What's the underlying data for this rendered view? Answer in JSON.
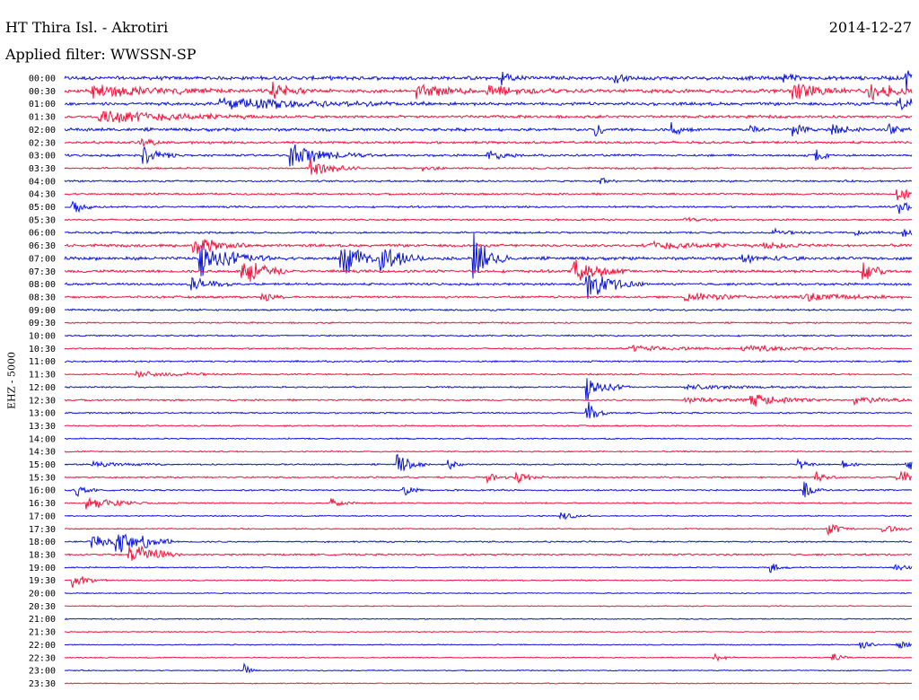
{
  "header": {
    "station": "HT Thira Isl. - Akrotiri",
    "date": "2014-12-27",
    "filter": "Applied filter: WWSSN-SP"
  },
  "channel_label": "EHZ - 5000",
  "colors": {
    "blue": "#0a14dc",
    "red": "#f0143c"
  },
  "chart_data": {
    "type": "line",
    "title": "HT Thira Isl. - Akrotiri",
    "subtitle": "Applied filter: WWSSN-SP",
    "ylabel": "EHZ - 5000",
    "xlabel": "",
    "grid": false,
    "row_labels": [
      "00:00",
      "00:30",
      "01:00",
      "01:30",
      "02:00",
      "02:30",
      "03:00",
      "03:30",
      "04:00",
      "04:30",
      "05:00",
      "05:30",
      "06:00",
      "06:30",
      "07:00",
      "07:30",
      "08:00",
      "08:30",
      "09:00",
      "09:30",
      "10:00",
      "10:30",
      "11:00",
      "11:30",
      "12:00",
      "12:30",
      "13:00",
      "13:30",
      "14:00",
      "14:30",
      "15:00",
      "15:30",
      "16:00",
      "16:30",
      "17:00",
      "17:30",
      "18:00",
      "18:30",
      "19:00",
      "19:30",
      "20:00",
      "20:30",
      "21:00",
      "21:30",
      "22:00",
      "22:30",
      "23:00",
      "23:30"
    ],
    "row_colors": "alternating blue (HH:00) / red (HH:30)",
    "x_unit": "minutes into 30-min row",
    "noise_level": [
      2.4,
      2.4,
      2.0,
      1.8,
      2.0,
      1.6,
      1.4,
      1.2,
      1.2,
      1.2,
      1.2,
      1.1,
      1.3,
      1.8,
      2.0,
      1.8,
      1.5,
      1.4,
      1.2,
      1.0,
      1.0,
      1.0,
      1.1,
      1.0,
      1.0,
      1.1,
      1.0,
      0.9,
      0.9,
      0.9,
      1.0,
      1.1,
      1.0,
      0.9,
      0.8,
      0.8,
      1.0,
      1.2,
      0.8,
      0.8,
      0.7,
      0.7,
      0.7,
      0.7,
      0.7,
      0.7,
      0.7,
      0.7
    ],
    "events": [
      {
        "row": 0,
        "t": 15.5,
        "amp": 9,
        "dur": 0.4
      },
      {
        "row": 0,
        "t": 19.5,
        "amp": 7,
        "dur": 0.3
      },
      {
        "row": 0,
        "t": 25.5,
        "amp": 6,
        "dur": 0.3
      },
      {
        "row": 0,
        "t": 29.8,
        "amp": 12,
        "dur": 0.3
      },
      {
        "row": 1,
        "t": 1.0,
        "amp": 8,
        "dur": 2.0
      },
      {
        "row": 1,
        "t": 7.3,
        "amp": 12,
        "dur": 0.5
      },
      {
        "row": 1,
        "t": 12.5,
        "amp": 9,
        "dur": 1.0
      },
      {
        "row": 1,
        "t": 15.0,
        "amp": 8,
        "dur": 1.0
      },
      {
        "row": 1,
        "t": 25.8,
        "amp": 11,
        "dur": 0.8
      },
      {
        "row": 1,
        "t": 28.5,
        "amp": 10,
        "dur": 1.0
      },
      {
        "row": 2,
        "t": 5.5,
        "amp": 8,
        "dur": 3.0
      },
      {
        "row": 2,
        "t": 29.5,
        "amp": 9,
        "dur": 0.8
      },
      {
        "row": 3,
        "t": 1.2,
        "amp": 9,
        "dur": 2.5
      },
      {
        "row": 4,
        "t": 18.8,
        "amp": 10,
        "dur": 0.2
      },
      {
        "row": 4,
        "t": 21.5,
        "amp": 9,
        "dur": 0.3
      },
      {
        "row": 4,
        "t": 24.3,
        "amp": 7,
        "dur": 0.2
      },
      {
        "row": 4,
        "t": 25.8,
        "amp": 9,
        "dur": 0.3
      },
      {
        "row": 4,
        "t": 27.2,
        "amp": 8,
        "dur": 0.4
      },
      {
        "row": 4,
        "t": 29.2,
        "amp": 7,
        "dur": 0.3
      },
      {
        "row": 5,
        "t": 2.7,
        "amp": 6,
        "dur": 0.4
      },
      {
        "row": 6,
        "t": 2.8,
        "amp": 12,
        "dur": 0.5
      },
      {
        "row": 6,
        "t": 8.0,
        "amp": 14,
        "dur": 1.2
      },
      {
        "row": 6,
        "t": 15.0,
        "amp": 6,
        "dur": 0.5
      },
      {
        "row": 6,
        "t": 26.6,
        "amp": 8,
        "dur": 0.3
      },
      {
        "row": 7,
        "t": 8.7,
        "amp": 12,
        "dur": 0.7
      },
      {
        "row": 7,
        "t": 12.7,
        "amp": 5,
        "dur": 0.3
      },
      {
        "row": 8,
        "t": 19.0,
        "amp": 5,
        "dur": 0.3
      },
      {
        "row": 9,
        "t": 29.5,
        "amp": 16,
        "dur": 0.3
      },
      {
        "row": 10,
        "t": 0.3,
        "amp": 8,
        "dur": 0.4
      },
      {
        "row": 10,
        "t": 29.5,
        "amp": 10,
        "dur": 0.4
      },
      {
        "row": 11,
        "t": 22.0,
        "amp": 3,
        "dur": 0.5
      },
      {
        "row": 12,
        "t": 25.0,
        "amp": 4,
        "dur": 0.6
      },
      {
        "row": 12,
        "t": 28.0,
        "amp": 3,
        "dur": 0.4
      },
      {
        "row": 12,
        "t": 29.7,
        "amp": 5,
        "dur": 0.4
      },
      {
        "row": 13,
        "t": 4.5,
        "amp": 14,
        "dur": 0.8
      },
      {
        "row": 13,
        "t": 20.8,
        "amp": 5,
        "dur": 1.5
      },
      {
        "row": 13,
        "t": 24.8,
        "amp": 5,
        "dur": 0.8
      },
      {
        "row": 14,
        "t": 4.8,
        "amp": 22,
        "dur": 1.0
      },
      {
        "row": 14,
        "t": 9.8,
        "amp": 26,
        "dur": 0.5
      },
      {
        "row": 14,
        "t": 11.2,
        "amp": 22,
        "dur": 0.6
      },
      {
        "row": 14,
        "t": 14.5,
        "amp": 30,
        "dur": 0.5
      },
      {
        "row": 14,
        "t": 24.0,
        "amp": 5,
        "dur": 0.8
      },
      {
        "row": 15,
        "t": 6.3,
        "amp": 22,
        "dur": 0.6
      },
      {
        "row": 15,
        "t": 18.0,
        "amp": 15,
        "dur": 0.8
      },
      {
        "row": 15,
        "t": 28.3,
        "amp": 12,
        "dur": 0.4
      },
      {
        "row": 16,
        "t": 4.5,
        "amp": 10,
        "dur": 0.6
      },
      {
        "row": 16,
        "t": 18.5,
        "amp": 18,
        "dur": 0.8
      },
      {
        "row": 17,
        "t": 7.0,
        "amp": 5,
        "dur": 0.5
      },
      {
        "row": 17,
        "t": 22.0,
        "amp": 6,
        "dur": 1.5
      },
      {
        "row": 17,
        "t": 26.0,
        "amp": 6,
        "dur": 1.5
      },
      {
        "row": 21,
        "t": 20.0,
        "amp": 4,
        "dur": 1.5
      },
      {
        "row": 21,
        "t": 24.0,
        "amp": 5,
        "dur": 1.5
      },
      {
        "row": 23,
        "t": 2.5,
        "amp": 4,
        "dur": 1.5
      },
      {
        "row": 24,
        "t": 18.5,
        "amp": 16,
        "dur": 0.6
      },
      {
        "row": 24,
        "t": 22.0,
        "amp": 3,
        "dur": 2.0
      },
      {
        "row": 25,
        "t": 22.0,
        "amp": 4,
        "dur": 1.2
      },
      {
        "row": 25,
        "t": 24.3,
        "amp": 7,
        "dur": 1.2
      },
      {
        "row": 25,
        "t": 28.0,
        "amp": 4,
        "dur": 1.2
      },
      {
        "row": 26,
        "t": 18.5,
        "amp": 16,
        "dur": 0.3
      },
      {
        "row": 30,
        "t": 1.0,
        "amp": 4,
        "dur": 1.0
      },
      {
        "row": 30,
        "t": 11.8,
        "amp": 14,
        "dur": 0.4
      },
      {
        "row": 30,
        "t": 13.6,
        "amp": 6,
        "dur": 0.3
      },
      {
        "row": 30,
        "t": 26.0,
        "amp": 8,
        "dur": 0.3
      },
      {
        "row": 30,
        "t": 27.6,
        "amp": 6,
        "dur": 0.3
      },
      {
        "row": 30,
        "t": 29.8,
        "amp": 10,
        "dur": 0.4
      },
      {
        "row": 31,
        "t": 15.0,
        "amp": 8,
        "dur": 0.3
      },
      {
        "row": 31,
        "t": 16.0,
        "amp": 9,
        "dur": 0.4
      },
      {
        "row": 31,
        "t": 26.6,
        "amp": 8,
        "dur": 0.3
      },
      {
        "row": 31,
        "t": 29.5,
        "amp": 10,
        "dur": 0.5
      },
      {
        "row": 32,
        "t": 0.4,
        "amp": 9,
        "dur": 0.3
      },
      {
        "row": 32,
        "t": 12.0,
        "amp": 8,
        "dur": 0.3
      },
      {
        "row": 32,
        "t": 26.2,
        "amp": 10,
        "dur": 0.3
      },
      {
        "row": 33,
        "t": 0.8,
        "amp": 8,
        "dur": 1.0
      },
      {
        "row": 33,
        "t": 9.4,
        "amp": 6,
        "dur": 0.4
      },
      {
        "row": 34,
        "t": 17.5,
        "amp": 5,
        "dur": 0.5
      },
      {
        "row": 35,
        "t": 27.0,
        "amp": 9,
        "dur": 0.4
      },
      {
        "row": 35,
        "t": 29.0,
        "amp": 6,
        "dur": 0.4
      },
      {
        "row": 36,
        "t": 1.0,
        "amp": 10,
        "dur": 0.6
      },
      {
        "row": 36,
        "t": 1.8,
        "amp": 14,
        "dur": 0.8
      },
      {
        "row": 36,
        "t": 2.8,
        "amp": 10,
        "dur": 0.4
      },
      {
        "row": 37,
        "t": 2.3,
        "amp": 10,
        "dur": 0.8
      },
      {
        "row": 37,
        "t": 2.6,
        "amp": 9,
        "dur": 0.5
      },
      {
        "row": 38,
        "t": 25.0,
        "amp": 6,
        "dur": 0.3
      },
      {
        "row": 38,
        "t": 29.4,
        "amp": 7,
        "dur": 0.3
      },
      {
        "row": 39,
        "t": 0.3,
        "amp": 9,
        "dur": 0.5
      },
      {
        "row": 44,
        "t": 28.2,
        "amp": 7,
        "dur": 0.3
      },
      {
        "row": 44,
        "t": 29.5,
        "amp": 7,
        "dur": 0.3
      },
      {
        "row": 45,
        "t": 23.0,
        "amp": 6,
        "dur": 0.3
      },
      {
        "row": 45,
        "t": 27.2,
        "amp": 6,
        "dur": 0.3
      },
      {
        "row": 46,
        "t": 6.4,
        "amp": 7,
        "dur": 0.2
      }
    ]
  }
}
